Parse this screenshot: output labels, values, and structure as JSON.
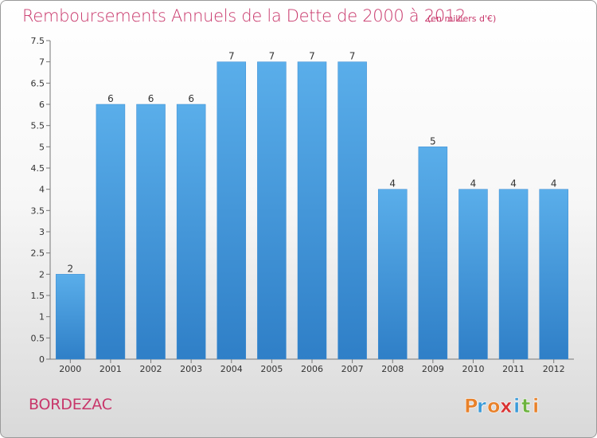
{
  "header": {
    "title": "Remboursements Annuels de la Dette de 2000 à 2012",
    "subtitle": "(en milliers d'€)"
  },
  "footer": {
    "commune": "BORDEZAC",
    "logo_text": "Proxiti"
  },
  "colors": {
    "bar": "#4a9ee0",
    "bar_dark": "#2f7fc7",
    "title": "#c8366a",
    "logo": [
      "#e8812a",
      "#3a9ad8",
      "#e8812a",
      "#d93232",
      "#3a9ad8",
      "#6cb33e",
      "#e8812a"
    ]
  },
  "chart_data": {
    "type": "bar",
    "title": "Remboursements Annuels de la Dette de 2000 à 2012",
    "categories": [
      "2000",
      "2001",
      "2002",
      "2003",
      "2004",
      "2005",
      "2006",
      "2007",
      "2008",
      "2009",
      "2010",
      "2011",
      "2012"
    ],
    "values": [
      2,
      6,
      6,
      6,
      7,
      7,
      7,
      7,
      4,
      5,
      4,
      4,
      4
    ],
    "data_labels": [
      "2",
      "6",
      "6",
      "6",
      "7",
      "7",
      "7",
      "7",
      "4",
      "5",
      "4",
      "4",
      "4"
    ],
    "ylim": [
      0,
      7.5
    ],
    "yticks": [
      0,
      0.5,
      1,
      1.5,
      2,
      2.5,
      3,
      3.5,
      4,
      4.5,
      5,
      5.5,
      6,
      6.5,
      7,
      7.5
    ],
    "ytick_labels": [
      "0",
      "0.5",
      "1",
      "1.5",
      "2",
      "2.5",
      "3",
      "3.5",
      "4",
      "4.5",
      "5",
      "5.5",
      "6",
      "6.5",
      "7",
      "7.5"
    ],
    "grid": false,
    "xlabel": "",
    "ylabel": ""
  }
}
